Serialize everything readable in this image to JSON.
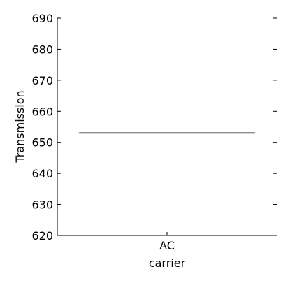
{
  "chart_data": {
    "type": "box",
    "xlabel": "carrier",
    "ylabel": "Transmission",
    "categories": [
      "AC"
    ],
    "ylim": [
      620,
      690
    ],
    "yticks": [
      620,
      630,
      640,
      650,
      660,
      670,
      680,
      690
    ],
    "series": [
      {
        "values": [
          653
        ],
        "median": 653,
        "q1": 653,
        "q3": 653,
        "whisker_low": 653,
        "whisker_high": 653
      }
    ],
    "grid": false,
    "colors": {
      "axis": "#000000",
      "box": "#000000",
      "background": "#ffffff"
    }
  }
}
